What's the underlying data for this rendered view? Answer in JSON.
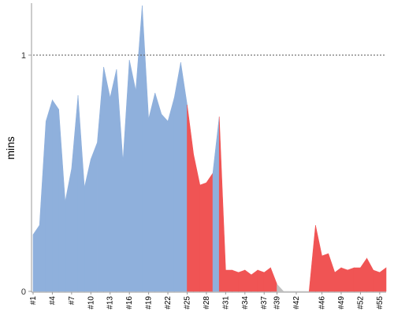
{
  "chart_data": {
    "type": "area",
    "ylabel": "mins",
    "y_ticks": [
      "0",
      "1"
    ],
    "ylim": [
      0,
      1.22
    ],
    "x_ticks": [
      "#1",
      "#4",
      "#7",
      "#10",
      "#13",
      "#16",
      "#19",
      "#22",
      "#25",
      "#28",
      "#31",
      "#34",
      "#37",
      "#39",
      "#42",
      "#46",
      "#49",
      "#52",
      "#55"
    ],
    "x": [
      "#1",
      "#2",
      "#3",
      "#4",
      "#5",
      "#6",
      "#7",
      "#8",
      "#9",
      "#10",
      "#11",
      "#12",
      "#13",
      "#14",
      "#15",
      "#16",
      "#17",
      "#18",
      "#19",
      "#20",
      "#21",
      "#22",
      "#23",
      "#24",
      "#25",
      "#26",
      "#27",
      "#28",
      "#29",
      "#30",
      "#31",
      "#32",
      "#33",
      "#34",
      "#35",
      "#36",
      "#37",
      "#38",
      "#39",
      "#40",
      "#41",
      "#42",
      "#43",
      "#44",
      "#45",
      "#46",
      "#47",
      "#48",
      "#49",
      "#50",
      "#51",
      "#52",
      "#53",
      "#54",
      "#55",
      "#56"
    ],
    "values": [
      0.24,
      0.28,
      0.72,
      0.81,
      0.77,
      0.38,
      0.52,
      0.83,
      0.44,
      0.56,
      0.63,
      0.95,
      0.82,
      0.94,
      0.55,
      0.98,
      0.85,
      1.21,
      0.73,
      0.84,
      0.75,
      0.72,
      0.82,
      0.97,
      0.79,
      0.58,
      0.45,
      0.46,
      0.5,
      0.74,
      0.09,
      0.09,
      0.08,
      0.09,
      0.07,
      0.09,
      0.08,
      0.1,
      0.03,
      0.0,
      0.0,
      0.0,
      0.0,
      0.0,
      0.28,
      0.15,
      0.16,
      0.08,
      0.1,
      0.09,
      0.1,
      0.1,
      0.14,
      0.09,
      0.08,
      0.1
    ],
    "series_colors": [
      "#8fb0dc",
      "#8fb0dc",
      "#8fb0dc",
      "#8fb0dc",
      "#8fb0dc",
      "#8fb0dc",
      "#8fb0dc",
      "#8fb0dc",
      "#8fb0dc",
      "#8fb0dc",
      "#8fb0dc",
      "#8fb0dc",
      "#8fb0dc",
      "#8fb0dc",
      "#8fb0dc",
      "#8fb0dc",
      "#8fb0dc",
      "#8fb0dc",
      "#8fb0dc",
      "#8fb0dc",
      "#8fb0dc",
      "#8fb0dc",
      "#8fb0dc",
      "#8fb0dc",
      "#f05454",
      "#f05454",
      "#f05454",
      "#f05454",
      "#8fb0dc",
      "#f05454",
      "#f05454",
      "#f05454",
      "#f05454",
      "#f05454",
      "#f05454",
      "#f05454",
      "#f05454",
      "#f05454",
      "#c0c0c0",
      "#c0c0c0",
      "#c0c0c0",
      "#c0c0c0",
      "#c0c0c0",
      "#f05454",
      "#f05454",
      "#f05454",
      "#f05454",
      "#f05454",
      "#f05454",
      "#f05454",
      "#f05454",
      "#f05454",
      "#f05454",
      "#f05454",
      "#f05454"
    ],
    "reference_line": 1,
    "grid": false
  }
}
